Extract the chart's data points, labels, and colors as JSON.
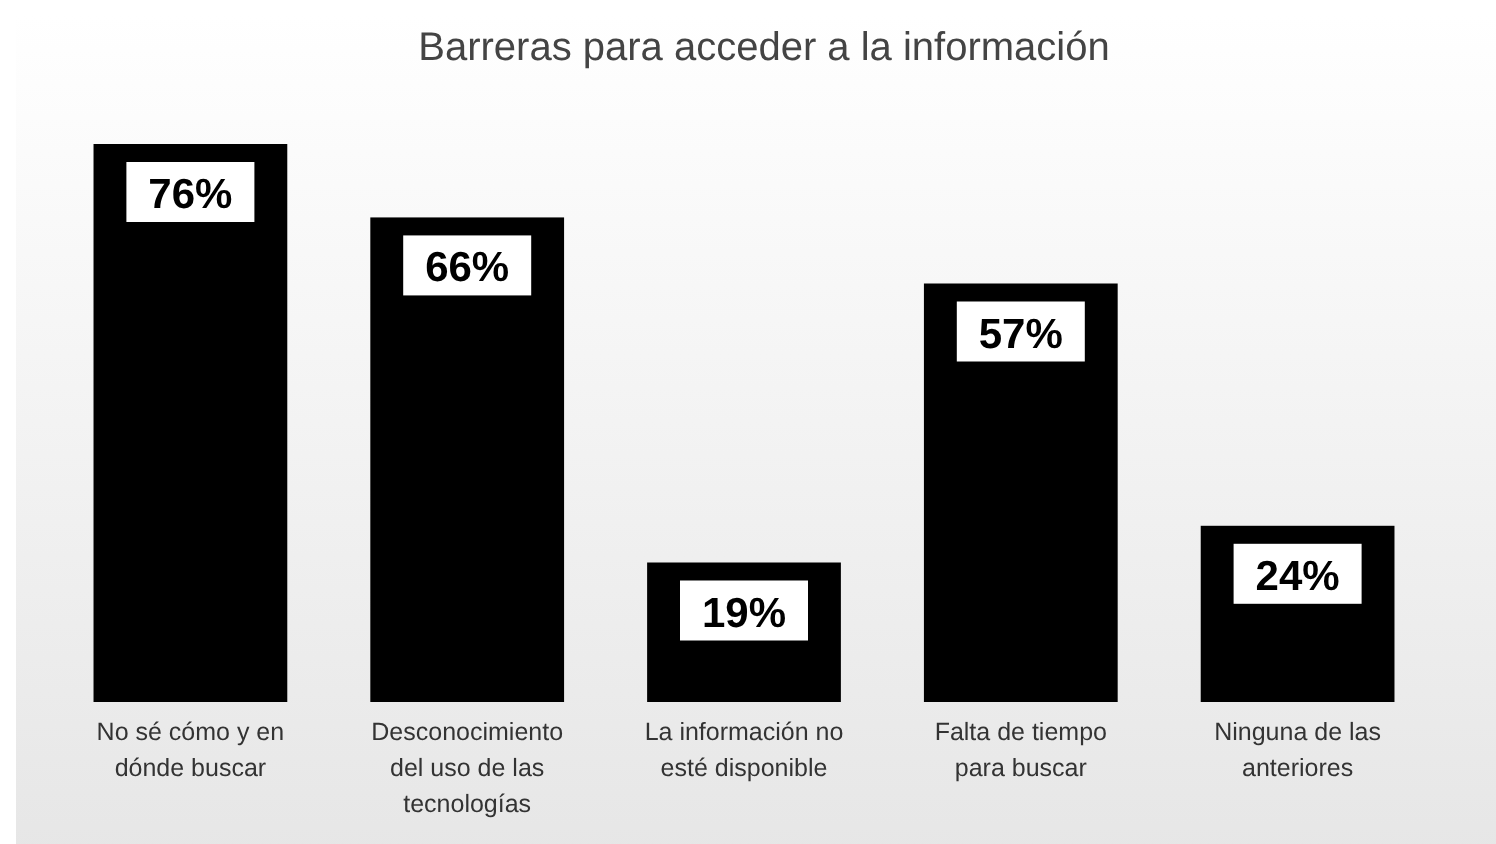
{
  "chart_data": {
    "type": "bar",
    "title": "Barreras para acceder a la información",
    "categories": [
      "No sé cómo y en dónde buscar",
      "Desconocimiento del uso de las tecnologías",
      "La información no esté disponible",
      "Falta de tiempo para buscar",
      "Ninguna de las anteriores"
    ],
    "values": [
      76,
      66,
      19,
      57,
      24
    ],
    "value_labels": [
      "76%",
      "66%",
      "19%",
      "57%",
      "24%"
    ],
    "color": "#000000",
    "data_labels": true
  }
}
